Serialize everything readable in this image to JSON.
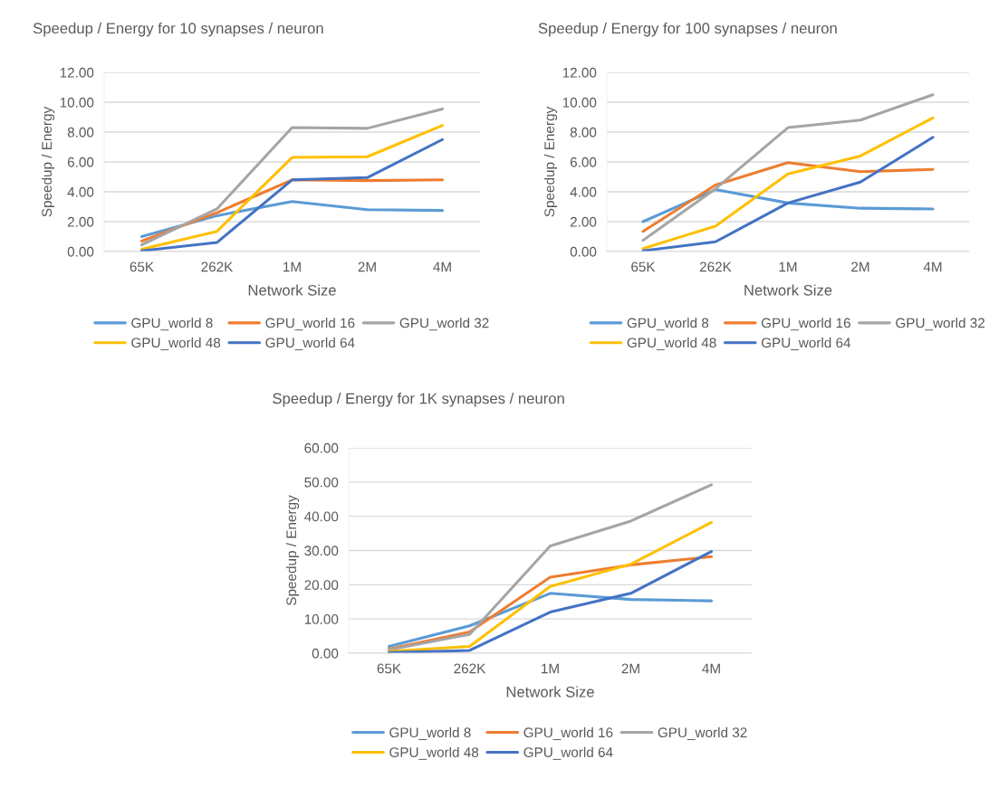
{
  "chart_data": [
    {
      "type": "line",
      "title": "Speedup / Energy for 10 synapses / neuron",
      "xlabel": "Network Size",
      "ylabel": "Speedup / Energy",
      "categories": [
        "65K",
        "262K",
        "1M",
        "2M",
        "4M"
      ],
      "ylim": [
        0,
        12
      ],
      "yticks": [
        {
          "value": 0,
          "label": "0.00"
        },
        {
          "value": 2,
          "label": "2.00"
        },
        {
          "value": 4,
          "label": "4.00"
        },
        {
          "value": 6,
          "label": "6.00"
        },
        {
          "value": 8,
          "label": "8.00"
        },
        {
          "value": 10,
          "label": "10.00"
        },
        {
          "value": 12,
          "label": "12.00"
        }
      ],
      "grid": "y",
      "legend": "bottom",
      "series": [
        {
          "name": "GPU_world 8",
          "color": "#5b9bd5",
          "values": [
            1.0,
            2.4,
            3.35,
            2.8,
            2.75
          ]
        },
        {
          "name": "GPU_world 16",
          "color": "#ed7d31",
          "values": [
            0.7,
            2.6,
            4.8,
            4.75,
            4.8
          ]
        },
        {
          "name": "GPU_world 32",
          "color": "#a5a5a5",
          "values": [
            0.45,
            2.85,
            8.3,
            8.25,
            9.55
          ]
        },
        {
          "name": "GPU_world 48",
          "color": "#ffc000",
          "values": [
            0.15,
            1.35,
            6.3,
            6.35,
            8.45
          ]
        },
        {
          "name": "GPU_world 64",
          "color": "#4472c4",
          "values": [
            0.05,
            0.6,
            4.8,
            4.95,
            7.5
          ]
        }
      ]
    },
    {
      "type": "line",
      "title": "Speedup / Energy for 100 synapses / neuron",
      "xlabel": "Network Size",
      "ylabel": "Speedup / Energy",
      "categories": [
        "65K",
        "262K",
        "1M",
        "2M",
        "4M"
      ],
      "ylim": [
        0,
        12
      ],
      "yticks": [
        {
          "value": 0,
          "label": "0.00"
        },
        {
          "value": 2,
          "label": "2.00"
        },
        {
          "value": 4,
          "label": "4.00"
        },
        {
          "value": 6,
          "label": "6.00"
        },
        {
          "value": 8,
          "label": "8.00"
        },
        {
          "value": 10,
          "label": "10.00"
        },
        {
          "value": 12,
          "label": "12.00"
        }
      ],
      "grid": "y",
      "legend": "bottom",
      "series": [
        {
          "name": "GPU_world 8",
          "color": "#5b9bd5",
          "values": [
            2.0,
            4.15,
            3.25,
            2.9,
            2.85
          ]
        },
        {
          "name": "GPU_world 16",
          "color": "#ed7d31",
          "values": [
            1.35,
            4.45,
            5.95,
            5.35,
            5.5
          ]
        },
        {
          "name": "GPU_world 32",
          "color": "#a5a5a5",
          "values": [
            0.75,
            4.2,
            8.3,
            8.8,
            10.5
          ]
        },
        {
          "name": "GPU_world 48",
          "color": "#ffc000",
          "values": [
            0.2,
            1.7,
            5.2,
            6.4,
            8.95
          ]
        },
        {
          "name": "GPU_world 64",
          "color": "#4472c4",
          "values": [
            0.05,
            0.65,
            3.25,
            4.65,
            7.65
          ]
        }
      ]
    },
    {
      "type": "line",
      "title": "Speedup / Energy for 1K synapses / neuron",
      "xlabel": "Network Size",
      "ylabel": "Speedup / Energy",
      "categories": [
        "65K",
        "262K",
        "1M",
        "2M",
        "4M"
      ],
      "ylim": [
        0,
        60
      ],
      "yticks": [
        {
          "value": 0,
          "label": "0.00"
        },
        {
          "value": 10,
          "label": "10.00"
        },
        {
          "value": 20,
          "label": "20.00"
        },
        {
          "value": 30,
          "label": "30.00"
        },
        {
          "value": 40,
          "label": "40.00"
        },
        {
          "value": 50,
          "label": "50.00"
        },
        {
          "value": 60,
          "label": "60.00"
        }
      ],
      "grid": "y",
      "legend": "bottom",
      "series": [
        {
          "name": "GPU_world 8",
          "color": "#5b9bd5",
          "values": [
            2.0,
            8.0,
            17.5,
            15.7,
            15.3
          ]
        },
        {
          "name": "GPU_world 16",
          "color": "#ed7d31",
          "values": [
            1.2,
            6.2,
            22.2,
            25.8,
            28.2
          ]
        },
        {
          "name": "GPU_world 32",
          "color": "#a5a5a5",
          "values": [
            1.0,
            5.5,
            31.3,
            38.6,
            49.2
          ]
        },
        {
          "name": "GPU_world 48",
          "color": "#ffc000",
          "values": [
            0.5,
            2.0,
            19.5,
            26.0,
            38.2
          ]
        },
        {
          "name": "GPU_world 64",
          "color": "#4472c4",
          "values": [
            0.2,
            0.8,
            12.0,
            17.5,
            29.7
          ]
        }
      ]
    }
  ]
}
